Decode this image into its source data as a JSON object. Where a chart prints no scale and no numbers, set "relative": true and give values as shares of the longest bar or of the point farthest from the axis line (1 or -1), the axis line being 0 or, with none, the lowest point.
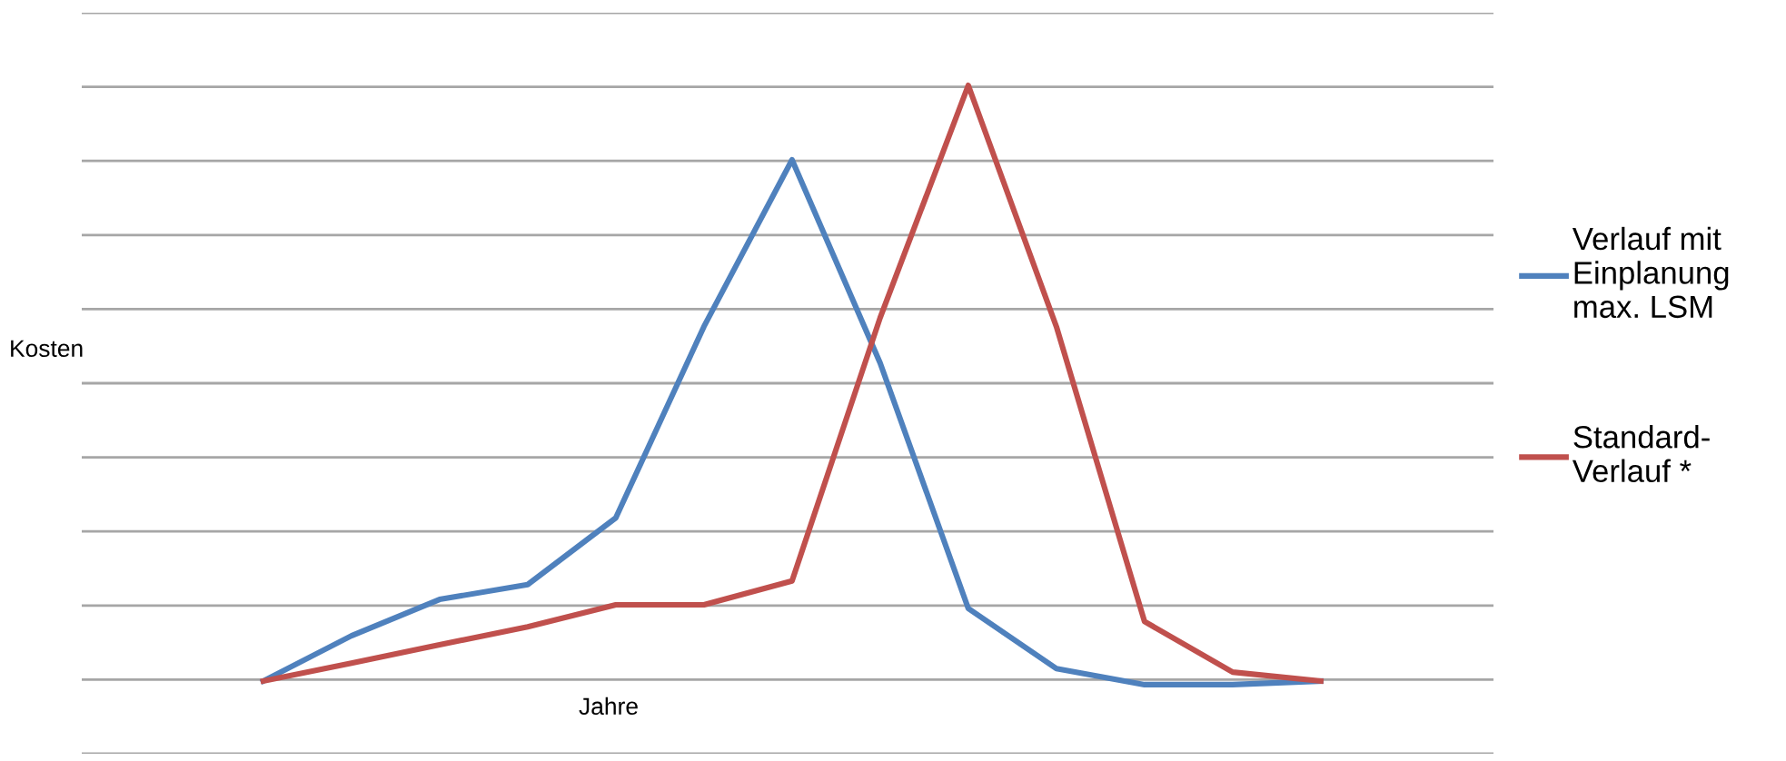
{
  "chart_data": {
    "type": "line",
    "relative": true,
    "annotations": [
      "Kosten"
    ],
    "xlabel": "Jahre",
    "categories": [
      null,
      null,
      null,
      null,
      null,
      null,
      null,
      null,
      null,
      null,
      null,
      null,
      null
    ],
    "series": [
      {
        "name": "Verlauf mit\nEinplanung\nmax. LSM",
        "color": "#4f81bd",
        "values": [
          0,
          0.076,
          0.137,
          0.162,
          0.274,
          0.595,
          0.875,
          0.534,
          0.122,
          0.021,
          -0.006,
          -0.006,
          0
        ]
      },
      {
        "name": "Standard-\nVerlauf *",
        "color": "#c0504d",
        "values": [
          0,
          0.03,
          0.061,
          0.091,
          0.128,
          0.128,
          0.168,
          0.61,
          1,
          0.595,
          0.1,
          0.015,
          0
        ]
      }
    ],
    "grid": "y",
    "legend": "right",
    "marker": "none",
    "line_style": "solid"
  }
}
